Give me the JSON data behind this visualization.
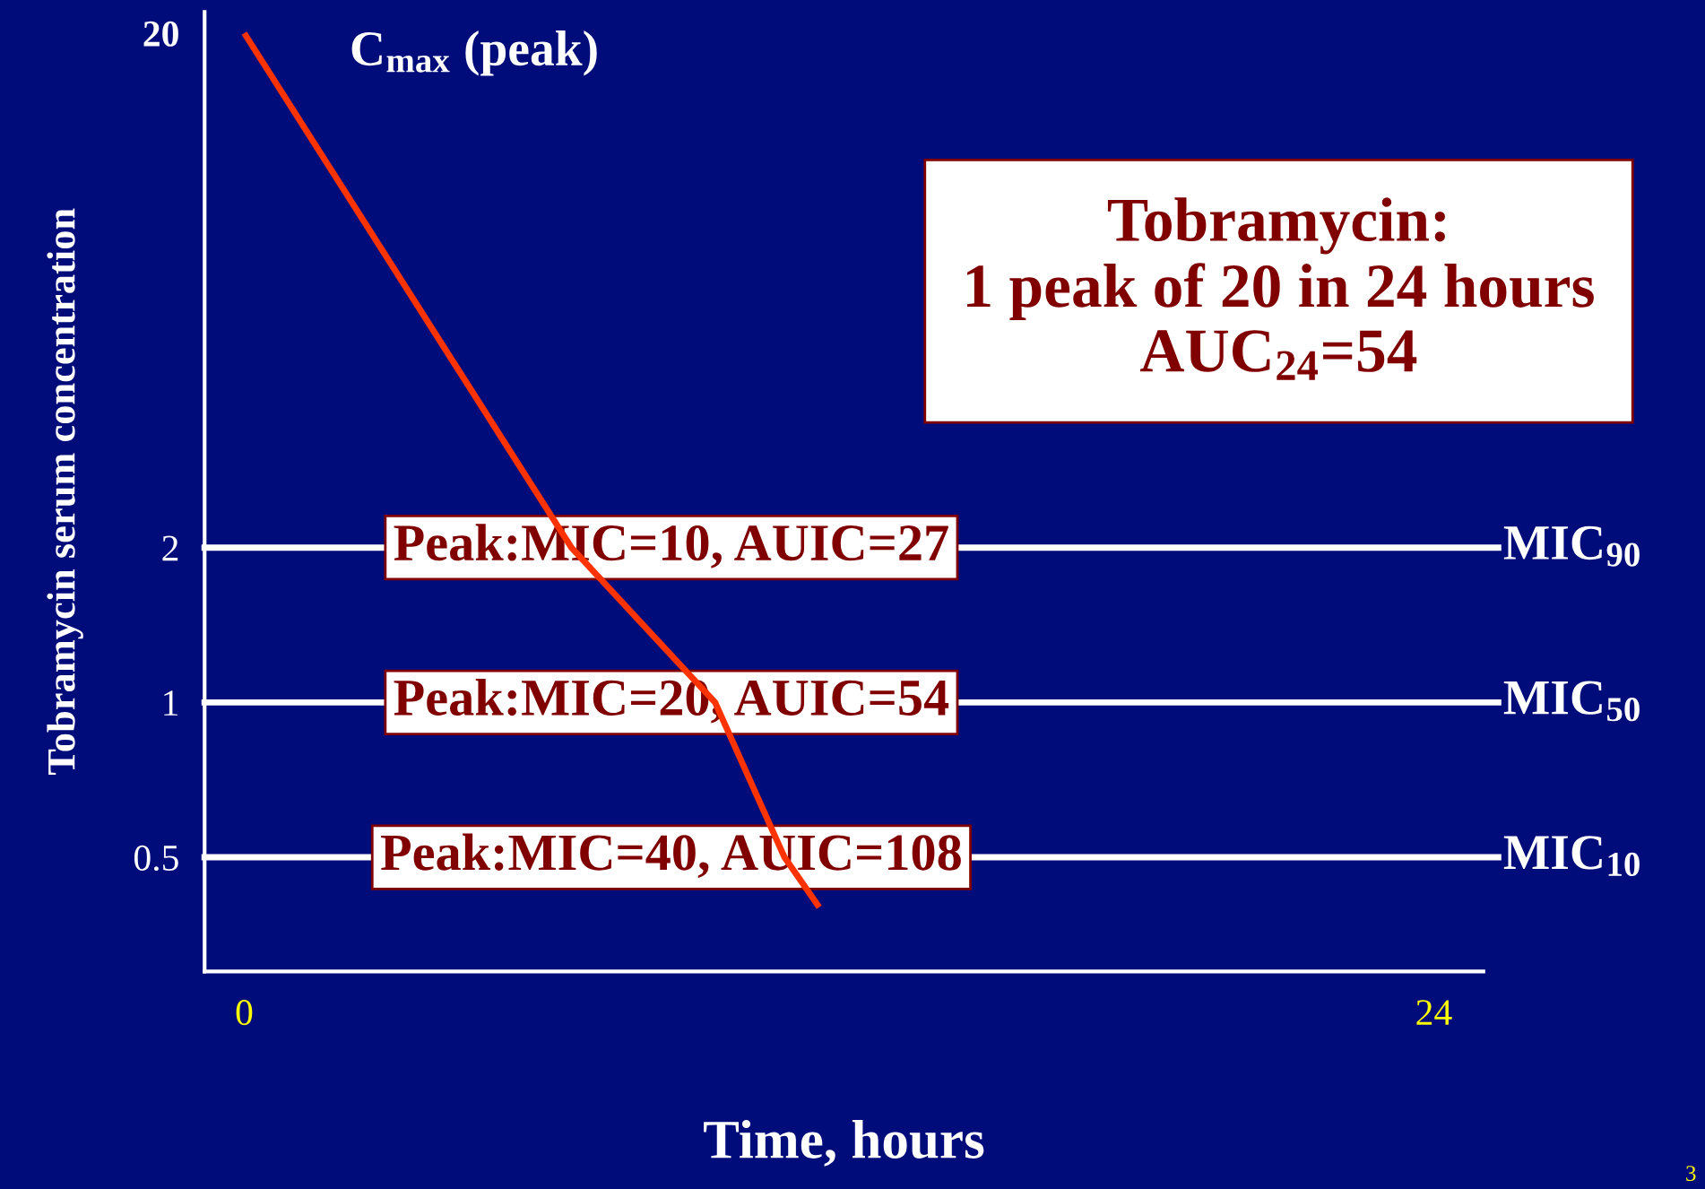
{
  "chart_data": {
    "type": "line",
    "xlabel": "Time, hours",
    "ylabel": "Tobramycin serum concentration",
    "log": "y",
    "xlim": [
      -0.8,
      25
    ],
    "ylim": [
      0.3,
      22
    ],
    "xticks": [
      0,
      24
    ],
    "yticks": [
      0.5,
      1,
      2,
      20
    ],
    "grid": false,
    "marker": "none",
    "line_style": "solid",
    "series": [
      {
        "color": "#ff3300",
        "x": [
          0,
          6.6,
          9.5,
          10.9,
          11.6
        ],
        "values": [
          20,
          2,
          1,
          0.5,
          0.4
        ]
      }
    ],
    "ref_lines": [
      {
        "axis": "y",
        "value": 2,
        "label": "MIC$_{90}$",
        "color": "#ffffff"
      },
      {
        "axis": "y",
        "value": 1,
        "label": "MIC$_{50}$",
        "color": "#ffffff"
      },
      {
        "axis": "y",
        "value": 0.5,
        "label": "MIC$_{10}$",
        "color": "#ffffff"
      }
    ],
    "annotations": [
      "C$_{max}$ (peak)",
      "Peak:MIC=10, AUIC=27",
      "Peak:MIC=20, AUIC=54",
      "Peak:MIC=40, AUIC=108",
      "Tobramycin:\n1 peak of 20 in 24 hours\nAUC$_{24}$=54",
      "3"
    ]
  }
}
